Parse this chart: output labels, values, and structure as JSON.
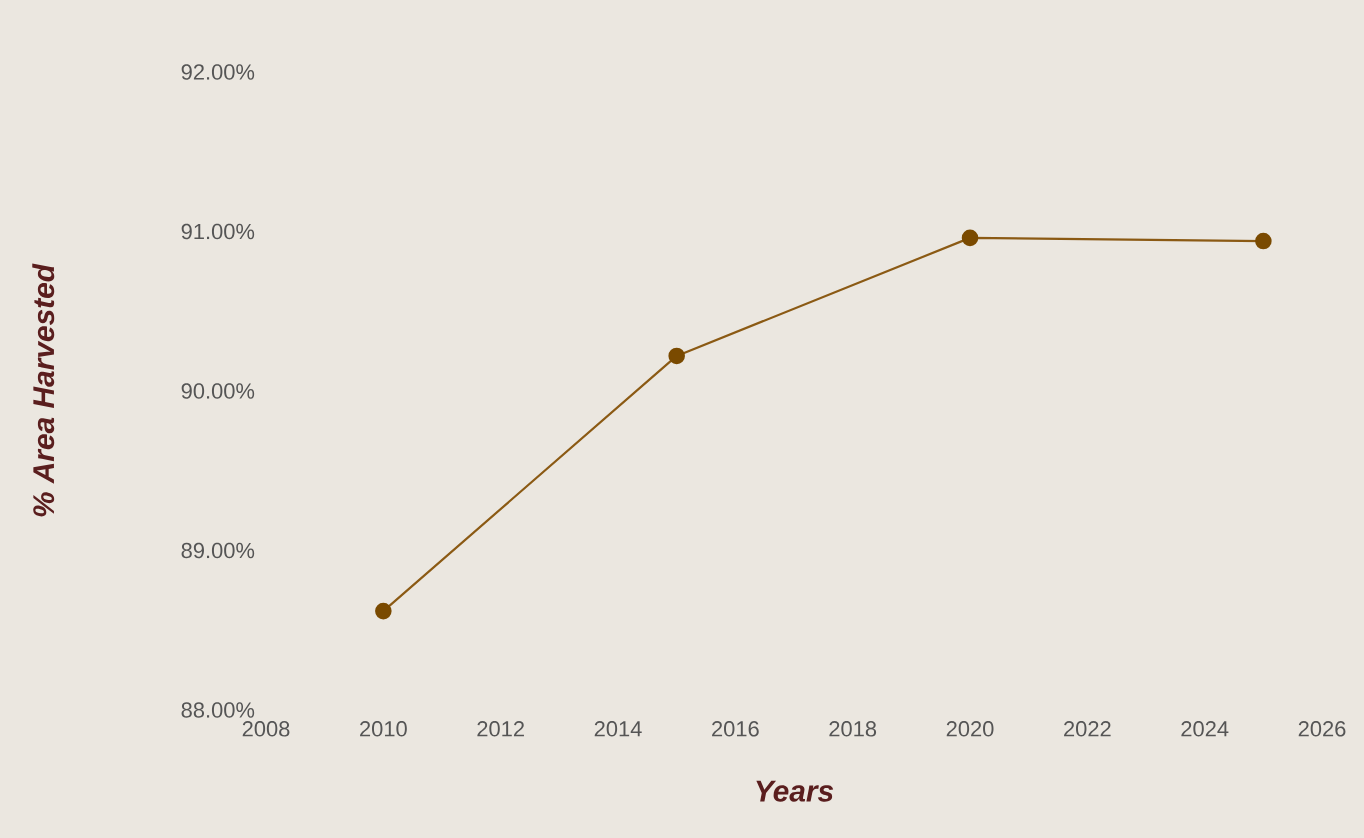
{
  "chart_data": {
    "type": "line",
    "xlabel": "Years",
    "ylabel": "% Area Harvested",
    "x": [
      2010,
      2015,
      2020,
      2025
    ],
    "series": [
      {
        "color": "#8b5a14",
        "values": [
          88.62,
          90.22,
          90.96,
          90.94
        ]
      }
    ],
    "xlim": [
      2008,
      2026
    ],
    "xticks": [
      2008,
      2010,
      2012,
      2014,
      2016,
      2018,
      2020,
      2022,
      2024,
      2026
    ],
    "ylim": [
      88,
      92
    ],
    "yticks": [
      {
        "value": 88,
        "label": "88.00%"
      },
      {
        "value": 89,
        "label": "89.00%"
      },
      {
        "value": 90,
        "label": "90.00%"
      },
      {
        "value": 91,
        "label": "91.00%"
      },
      {
        "value": 92,
        "label": "92.00%"
      }
    ],
    "marker": "circle",
    "line_style": "solid"
  }
}
